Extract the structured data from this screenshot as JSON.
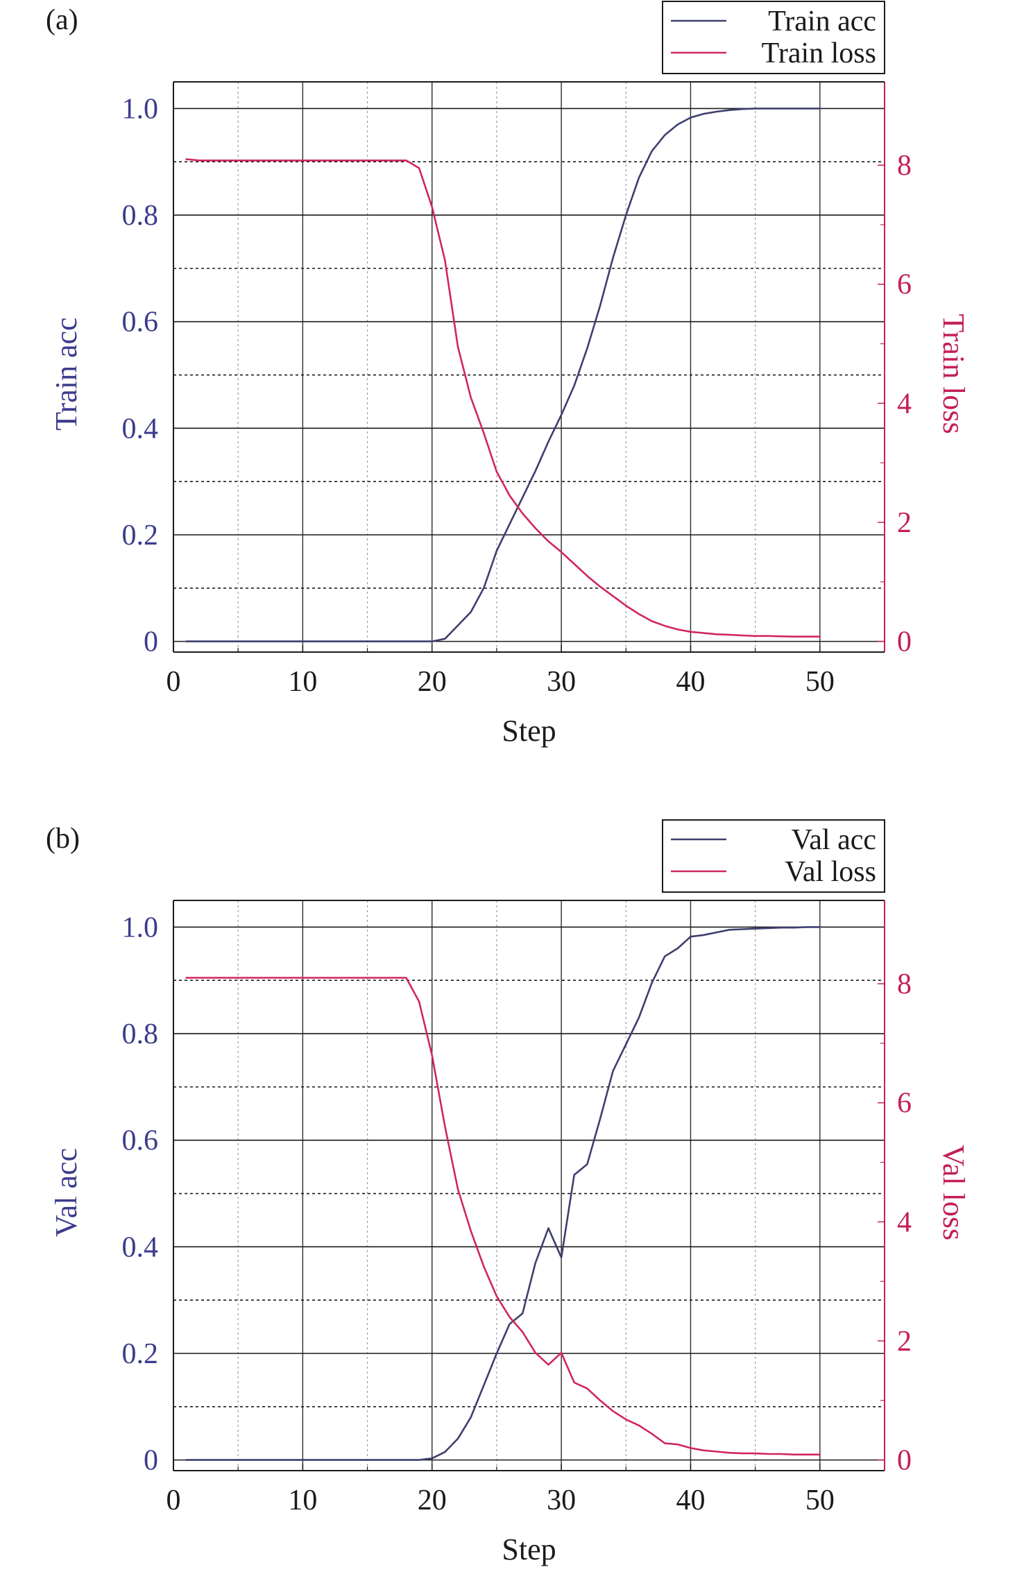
{
  "chart_data": [
    {
      "panel_label": "(a)",
      "type": "line",
      "xlabel": "Step",
      "ylabel_left": "Train acc",
      "ylabel_right": "Train loss",
      "xlim": [
        0,
        55
      ],
      "ylim_left": [
        -0.02,
        1.05
      ],
      "ylim_right": [
        -0.18,
        9.4
      ],
      "x_ticks": [
        0,
        10,
        20,
        30,
        40,
        50
      ],
      "x_tick_labels": [
        "0",
        "10",
        "20",
        "30",
        "40",
        "50"
      ],
      "y_ticks_left": [
        0,
        0.2,
        0.4,
        0.6,
        0.8,
        1.0
      ],
      "y_tick_labels_left": [
        "0",
        "0.2",
        "0.4",
        "0.6",
        "0.8",
        "1.0"
      ],
      "y_ticks_right": [
        0,
        2,
        4,
        6,
        8
      ],
      "y_tick_labels_right": [
        "0",
        "2",
        "4",
        "6",
        "8"
      ],
      "grid": true,
      "legend_position": "top-right",
      "series": [
        {
          "name": "Train acc",
          "axis": "left",
          "color": "#3d3f6e",
          "x": [
            1,
            5,
            10,
            15,
            18,
            19,
            20,
            21,
            22,
            23,
            24,
            25,
            26,
            27,
            28,
            29,
            30,
            31,
            32,
            33,
            34,
            35,
            36,
            37,
            38,
            39,
            40,
            41,
            42,
            43,
            44,
            45,
            46,
            47,
            48,
            49,
            50
          ],
          "y": [
            0,
            0,
            0,
            0,
            0,
            0,
            0,
            0.005,
            0.03,
            0.055,
            0.1,
            0.17,
            0.22,
            0.27,
            0.32,
            0.375,
            0.425,
            0.48,
            0.55,
            0.63,
            0.72,
            0.8,
            0.87,
            0.92,
            0.95,
            0.97,
            0.983,
            0.99,
            0.994,
            0.997,
            0.999,
            1.0,
            1.0,
            1.0,
            1.0,
            1.0,
            1.0
          ]
        },
        {
          "name": "Train loss",
          "axis": "right",
          "color": "#d0265e",
          "x": [
            1,
            2,
            5,
            10,
            15,
            18,
            19,
            20,
            21,
            22,
            23,
            24,
            25,
            26,
            27,
            28,
            29,
            30,
            31,
            32,
            33,
            34,
            35,
            36,
            37,
            38,
            39,
            40,
            41,
            42,
            43,
            44,
            45,
            46,
            47,
            48,
            49,
            50
          ],
          "y": [
            8.1,
            8.08,
            8.08,
            8.08,
            8.08,
            8.08,
            7.95,
            7.3,
            6.4,
            4.95,
            4.1,
            3.5,
            2.85,
            2.45,
            2.15,
            1.9,
            1.68,
            1.5,
            1.3,
            1.1,
            0.92,
            0.76,
            0.6,
            0.46,
            0.34,
            0.26,
            0.2,
            0.16,
            0.14,
            0.12,
            0.11,
            0.1,
            0.09,
            0.09,
            0.085,
            0.08,
            0.08,
            0.08
          ]
        }
      ]
    },
    {
      "panel_label": "(b)",
      "type": "line",
      "xlabel": "Step",
      "ylabel_left": "Val acc",
      "ylabel_right": "Val loss",
      "xlim": [
        0,
        55
      ],
      "ylim_left": [
        -0.02,
        1.05
      ],
      "ylim_right": [
        -0.18,
        9.4
      ],
      "x_ticks": [
        0,
        10,
        20,
        30,
        40,
        50
      ],
      "x_tick_labels": [
        "0",
        "10",
        "20",
        "30",
        "40",
        "50"
      ],
      "y_ticks_left": [
        0,
        0.2,
        0.4,
        0.6,
        0.8,
        1.0
      ],
      "y_tick_labels_left": [
        "0",
        "0.2",
        "0.4",
        "0.6",
        "0.8",
        "1.0"
      ],
      "y_ticks_right": [
        0,
        2,
        4,
        6,
        8
      ],
      "y_tick_labels_right": [
        "0",
        "2",
        "4",
        "6",
        "8"
      ],
      "grid": true,
      "legend_position": "top-right",
      "series": [
        {
          "name": "Val acc",
          "axis": "left",
          "color": "#3d3f6e",
          "x": [
            1,
            5,
            10,
            15,
            18,
            19,
            20,
            21,
            22,
            23,
            24,
            25,
            26,
            27,
            28,
            29,
            30,
            31,
            32,
            33,
            34,
            35,
            36,
            37,
            38,
            39,
            40,
            41,
            42,
            43,
            44,
            45,
            46,
            47,
            48,
            49,
            50
          ],
          "y": [
            0,
            0,
            0,
            0,
            0,
            0,
            0.003,
            0.015,
            0.04,
            0.08,
            0.14,
            0.2,
            0.255,
            0.275,
            0.37,
            0.435,
            0.38,
            0.535,
            0.555,
            0.64,
            0.73,
            0.78,
            0.83,
            0.895,
            0.945,
            0.96,
            0.982,
            0.985,
            0.99,
            0.995,
            0.996,
            0.997,
            0.998,
            0.999,
            0.999,
            1.0,
            1.0
          ]
        },
        {
          "name": "Val loss",
          "axis": "right",
          "color": "#d0265e",
          "x": [
            1,
            5,
            10,
            15,
            18,
            19,
            20,
            21,
            22,
            23,
            24,
            25,
            26,
            27,
            28,
            29,
            30,
            31,
            32,
            33,
            34,
            35,
            36,
            37,
            38,
            39,
            40,
            41,
            42,
            43,
            44,
            45,
            46,
            47,
            48,
            49,
            50
          ],
          "y": [
            8.1,
            8.1,
            8.1,
            8.1,
            8.1,
            7.7,
            6.8,
            5.6,
            4.55,
            3.85,
            3.25,
            2.75,
            2.4,
            2.15,
            1.8,
            1.6,
            1.8,
            1.3,
            1.2,
            1.0,
            0.82,
            0.68,
            0.58,
            0.44,
            0.28,
            0.26,
            0.2,
            0.16,
            0.14,
            0.12,
            0.11,
            0.11,
            0.1,
            0.1,
            0.09,
            0.09,
            0.09
          ]
        }
      ]
    }
  ]
}
